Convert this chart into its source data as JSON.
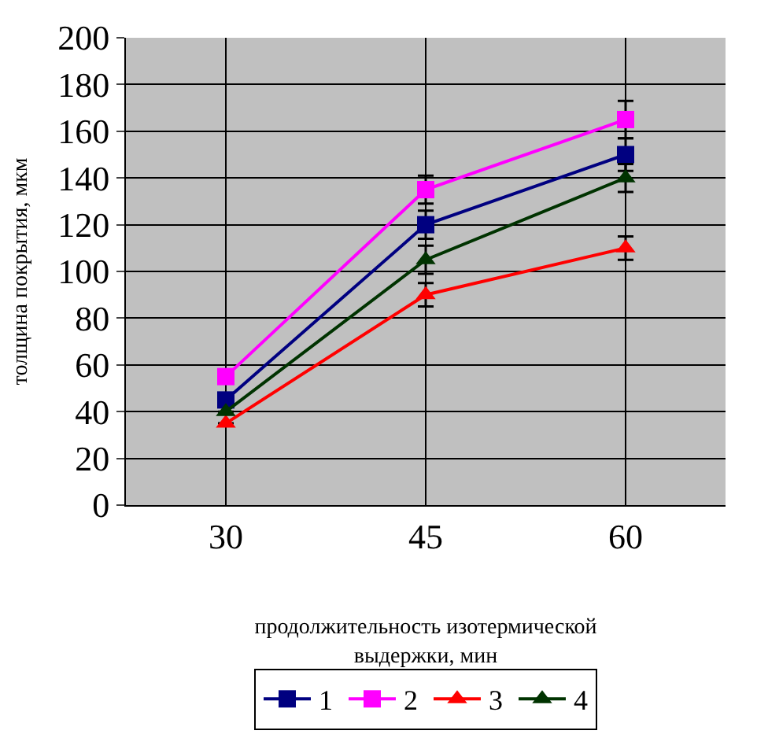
{
  "chart_data": {
    "type": "line",
    "xlabel": "продолжительность изотермической выдержки, мин",
    "ylabel": "толщина покрытия, мкм",
    "categories": [
      "30",
      "45",
      "60"
    ],
    "ylim": [
      0,
      200
    ],
    "yticks": [
      0,
      20,
      40,
      60,
      80,
      100,
      120,
      140,
      160,
      180,
      200
    ],
    "grid": true,
    "legend": "bottom",
    "line_style": "solid",
    "series": [
      {
        "name": "1",
        "color": "#000080",
        "marker": "square",
        "values": [
          45,
          120,
          150
        ],
        "errors": [
          null,
          6,
          7
        ]
      },
      {
        "name": "2",
        "color": "#ff00ff",
        "marker": "square",
        "values": [
          55,
          135,
          165
        ],
        "errors": [
          null,
          6,
          8
        ]
      },
      {
        "name": "3",
        "color": "#ff0000",
        "marker": "triangle",
        "values": [
          35,
          90,
          110
        ],
        "errors": [
          null,
          5,
          5
        ]
      },
      {
        "name": "4",
        "color": "#003300",
        "marker": "triangle",
        "values": [
          40,
          105,
          140
        ],
        "errors": [
          null,
          6,
          6
        ]
      }
    ]
  }
}
